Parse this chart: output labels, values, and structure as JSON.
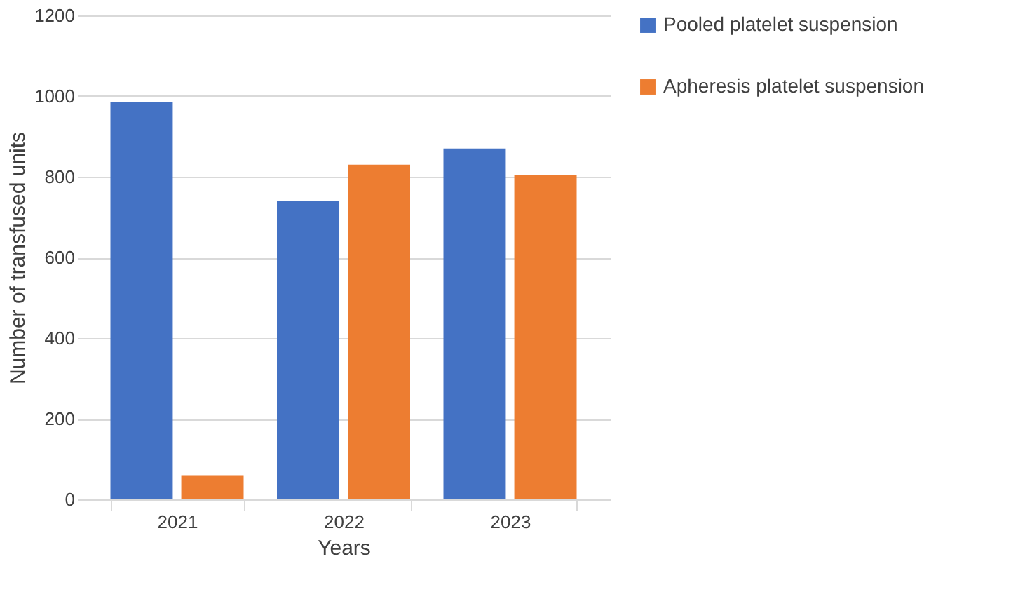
{
  "chart_data": {
    "type": "bar",
    "xlabel": "Years",
    "ylabel": "Number of transfused units",
    "categories": [
      "2021",
      "2022",
      "2023"
    ],
    "series": [
      {
        "name": "Pooled platelet suspension",
        "color": "#4472c4",
        "values": [
          985,
          740,
          870
        ]
      },
      {
        "name": "Apheresis platelet suspension",
        "color": "#ed7d31",
        "values": [
          60,
          830,
          805
        ]
      }
    ],
    "ylim": [
      0,
      1200
    ],
    "yticks": [
      0,
      200,
      400,
      600,
      800,
      1000,
      1200
    ],
    "grid": "y",
    "legend": "right"
  }
}
